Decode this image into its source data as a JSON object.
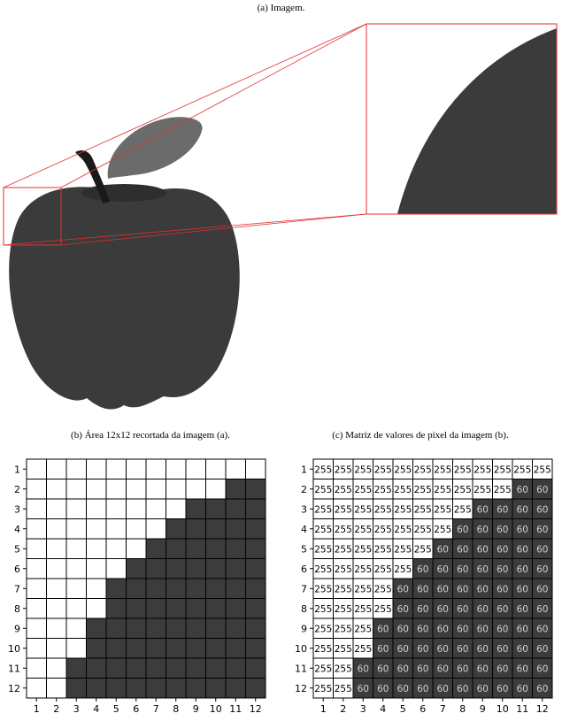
{
  "captions": {
    "a": "(a) Imagem.",
    "b": "(b) Área 12x12 recortada da imagem (a).",
    "c": "(c) Matriz de valores de pixel da imagem (b)."
  },
  "colors": {
    "apple": "#3b3b3b",
    "leaf": "#6b6b6b",
    "stem": "#1a1a1a",
    "dark_pixel": "#3c3c3c",
    "light_pixel": "#ffffff",
    "zoom_lines": "#e03030"
  },
  "grid": {
    "size": 12,
    "tick_labels": [
      "1",
      "2",
      "3",
      "4",
      "5",
      "6",
      "7",
      "8",
      "9",
      "10",
      "11",
      "12"
    ],
    "light_value": 255,
    "dark_value": 60,
    "dark_start_column_per_row": [
      13,
      11,
      9,
      8,
      7,
      6,
      5,
      5,
      4,
      4,
      3,
      3
    ]
  }
}
